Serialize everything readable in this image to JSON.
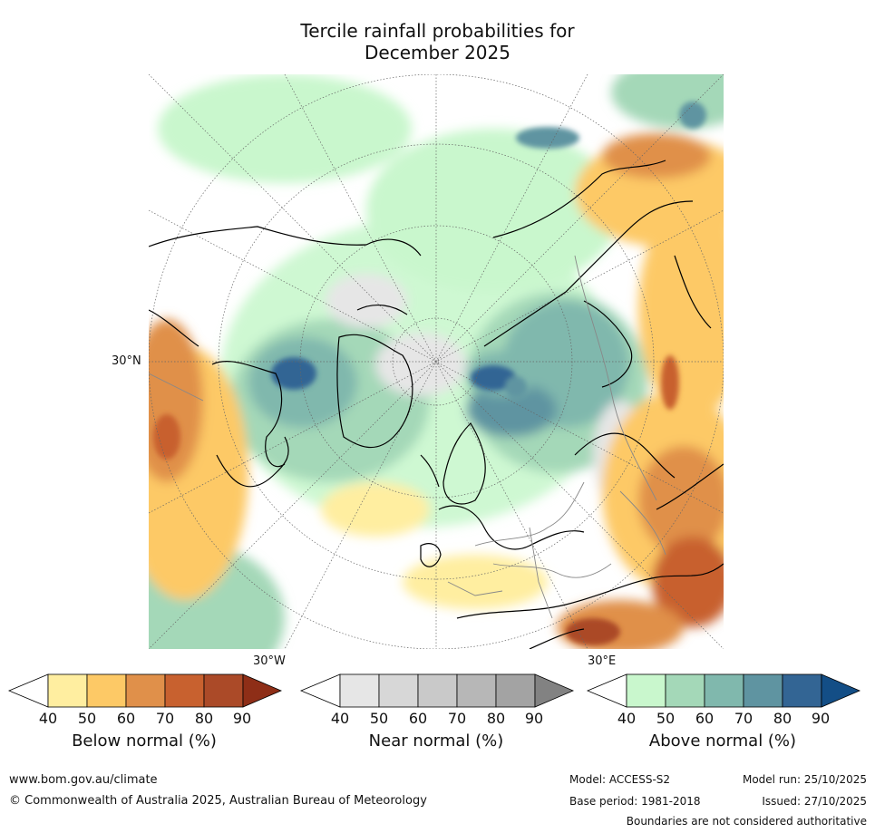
{
  "title_line1": "Tercile rainfall probabilities for",
  "title_line2": "December 2025",
  "map": {
    "lat_label": "30°N",
    "lon_label_left": "30°W",
    "lon_label_right": "30°E"
  },
  "colorbars": [
    {
      "label": "Below normal (%)",
      "ticks": [
        "40",
        "50",
        "60",
        "70",
        "80",
        "90"
      ],
      "colors": [
        "#ffeea0",
        "#fdc966",
        "#e0904a",
        "#c8612f",
        "#ab4a28",
        "#8e2e17"
      ]
    },
    {
      "label": "Near normal (%)",
      "ticks": [
        "40",
        "50",
        "60",
        "70",
        "80",
        "90"
      ],
      "colors": [
        "#e6e6e6",
        "#d7d7d7",
        "#c9c9c9",
        "#b7b7b7",
        "#a3a3a3",
        "#828282"
      ]
    },
    {
      "label": "Above normal (%)",
      "ticks": [
        "40",
        "50",
        "60",
        "70",
        "80",
        "90"
      ],
      "colors": [
        "#c9f7cd",
        "#a4d8b8",
        "#80b8ad",
        "#5f94a1",
        "#336594",
        "#134e86"
      ]
    }
  ],
  "footer": {
    "website": "www.bom.gov.au/climate",
    "copyright": "© Commonwealth of Australia 2025, Australian Bureau of Meteorology",
    "model": "Model: ACCESS-S2",
    "base_period": "Base period: 1981-2018",
    "model_run": "Model run: 25/10/2025",
    "issued": "Issued: 27/10/2025",
    "disclaimer": "Boundaries are not considered authoritative"
  }
}
